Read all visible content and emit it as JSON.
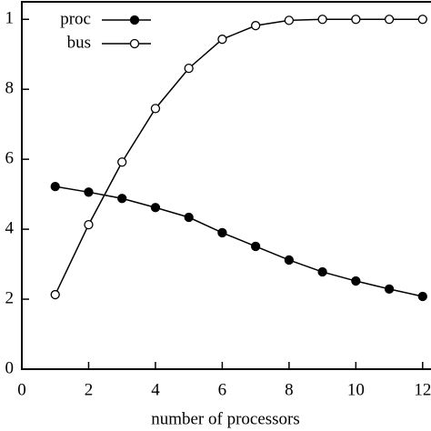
{
  "chart_data": {
    "type": "line",
    "xlabel": "number of processors",
    "x": [
      1,
      2,
      3,
      4,
      5,
      6,
      7,
      8,
      9,
      10,
      11,
      12
    ],
    "series": [
      {
        "name": "proc",
        "color": "#000000",
        "marker": "filled",
        "values": [
          0.522,
          0.506,
          0.488,
          0.462,
          0.434,
          0.39,
          0.351,
          0.312,
          0.278,
          0.252,
          0.229,
          0.208
        ]
      },
      {
        "name": "bus",
        "color": "#000000",
        "marker": "open",
        "values": [
          0.213,
          0.413,
          0.592,
          0.745,
          0.86,
          0.943,
          0.982,
          0.997,
          1.0,
          1.0,
          1.0,
          1.0
        ]
      }
    ],
    "xlim": [
      0,
      12.25
    ],
    "xticks": [
      0,
      2,
      4,
      6,
      8,
      10,
      12
    ],
    "ylim": [
      0,
      1.05
    ],
    "yticks": [
      0,
      {
        "value": 0.2,
        "label": "2"
      },
      {
        "value": 0.4,
        "label": "4"
      },
      {
        "value": 0.6,
        "label": "6"
      },
      {
        "value": 0.8,
        "label": "8"
      },
      1
    ],
    "legend": "top-left"
  }
}
